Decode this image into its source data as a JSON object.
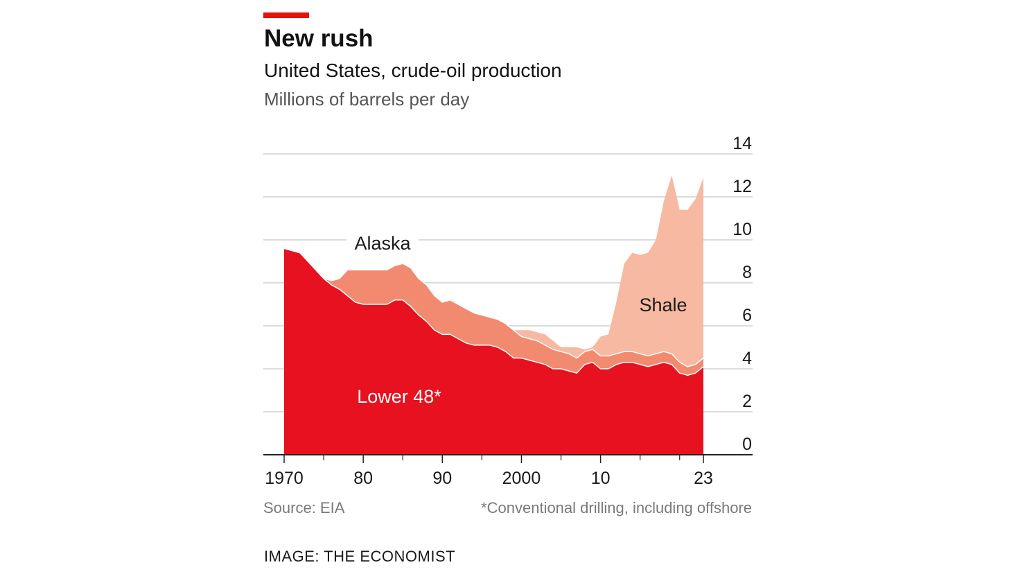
{
  "header": {
    "title": "New rush",
    "subtitle": "United States, crude-oil production",
    "units": "Millions of barrels per day"
  },
  "footer": {
    "source": "Source: EIA",
    "footnote": "*Conventional drilling, including offshore",
    "credit": "IMAGE: THE ECONOMIST"
  },
  "colors": {
    "lower48": "#e8111f",
    "alaska": "#f28a70",
    "shale": "#f7b9a1",
    "brand": "#e3120b",
    "grid": "#d0d0d0"
  },
  "chart_data": {
    "type": "area",
    "stacked": true,
    "xlim": [
      1970,
      2023
    ],
    "ylim": [
      0,
      14
    ],
    "grid": true,
    "x_tick_values": [
      1970,
      1980,
      1990,
      2000,
      2010,
      2023
    ],
    "x_tick_labels": [
      "1970",
      "80",
      "90",
      "2000",
      "10",
      "23"
    ],
    "x_minor_ticks": [
      1975,
      1985,
      1995,
      2005,
      2015,
      2020
    ],
    "y_ticks": [
      0,
      2,
      4,
      6,
      8,
      10,
      12,
      14
    ],
    "y_tick_labels": [
      "0",
      "2",
      "4",
      "6",
      "8",
      "10",
      "12",
      "14"
    ],
    "annotations": [
      {
        "text": "Alaska",
        "series": "Alaska"
      },
      {
        "text": "Shale",
        "series": "Shale"
      },
      {
        "text": "Lower 48*",
        "series": "Lower 48*"
      }
    ],
    "x": [
      1970,
      1971,
      1972,
      1973,
      1974,
      1975,
      1976,
      1977,
      1978,
      1979,
      1980,
      1981,
      1982,
      1983,
      1984,
      1985,
      1986,
      1987,
      1988,
      1989,
      1990,
      1991,
      1992,
      1993,
      1994,
      1995,
      1996,
      1997,
      1998,
      1999,
      2000,
      2001,
      2002,
      2003,
      2004,
      2005,
      2006,
      2007,
      2008,
      2009,
      2010,
      2011,
      2012,
      2013,
      2014,
      2015,
      2016,
      2017,
      2018,
      2019,
      2020,
      2021,
      2022,
      2023
    ],
    "series": [
      {
        "name": "Lower 48*",
        "values": [
          9.6,
          9.5,
          9.4,
          9.0,
          8.6,
          8.2,
          7.9,
          7.7,
          7.4,
          7.1,
          7.0,
          7.0,
          7.0,
          7.0,
          7.2,
          7.2,
          6.9,
          6.5,
          6.2,
          5.8,
          5.6,
          5.6,
          5.4,
          5.2,
          5.1,
          5.1,
          5.1,
          5.0,
          4.8,
          4.5,
          4.5,
          4.4,
          4.3,
          4.2,
          4.0,
          4.0,
          3.9,
          3.8,
          4.2,
          4.3,
          4.0,
          4.0,
          4.2,
          4.3,
          4.3,
          4.2,
          4.1,
          4.2,
          4.3,
          4.2,
          3.8,
          3.7,
          3.8,
          4.1
        ]
      },
      {
        "name": "Alaska",
        "values": [
          0.0,
          0.0,
          0.0,
          0.0,
          0.0,
          0.0,
          0.2,
          0.5,
          1.2,
          1.5,
          1.6,
          1.6,
          1.6,
          1.6,
          1.6,
          1.7,
          1.8,
          1.7,
          1.7,
          1.6,
          1.5,
          1.6,
          1.6,
          1.6,
          1.5,
          1.4,
          1.3,
          1.3,
          1.3,
          1.3,
          1.0,
          1.0,
          1.0,
          0.9,
          0.9,
          0.8,
          0.8,
          0.7,
          0.6,
          0.6,
          0.6,
          0.6,
          0.5,
          0.5,
          0.5,
          0.5,
          0.5,
          0.5,
          0.5,
          0.5,
          0.5,
          0.4,
          0.4,
          0.4
        ]
      },
      {
        "name": "Shale",
        "values": [
          0.0,
          0.0,
          0.0,
          0.0,
          0.0,
          0.0,
          0.0,
          0.0,
          0.0,
          0.0,
          0.0,
          0.0,
          0.0,
          0.0,
          0.0,
          0.0,
          0.0,
          0.0,
          0.0,
          0.0,
          0.0,
          0.0,
          0.0,
          0.0,
          0.0,
          0.0,
          0.0,
          0.0,
          0.0,
          0.0,
          0.3,
          0.4,
          0.4,
          0.5,
          0.4,
          0.2,
          0.3,
          0.5,
          0.1,
          0.1,
          0.9,
          1.0,
          2.4,
          4.1,
          4.6,
          4.6,
          4.8,
          5.3,
          7.0,
          8.3,
          7.1,
          7.3,
          7.7,
          8.4
        ]
      }
    ]
  }
}
